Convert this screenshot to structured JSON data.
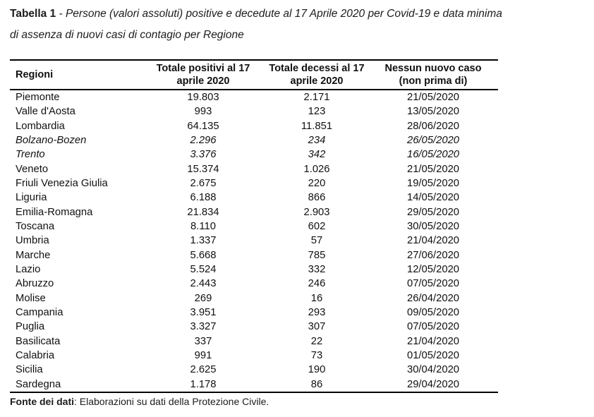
{
  "title": {
    "label": "Tabella 1",
    "text": " - Persone (valori assoluti) positive e decedute al 17 Aprile 2020 per Covid-19 e data minima\ndi assenza di nuovi casi di contagio per Regione"
  },
  "table": {
    "columns": [
      "Regioni",
      "Totale positivi al 17\naprile 2020",
      "Totale decessi al 17\naprile 2020",
      "Nessun nuovo caso\n(non prima di)"
    ],
    "rows": [
      {
        "regione": "Piemonte",
        "positivi": "19.803",
        "decessi": "2.171",
        "nessun_nuovo_caso": "21/05/2020",
        "italic": false
      },
      {
        "regione": "Valle d'Aosta",
        "positivi": "993",
        "decessi": "123",
        "nessun_nuovo_caso": "13/05/2020",
        "italic": false
      },
      {
        "regione": "Lombardia",
        "positivi": "64.135",
        "decessi": "11.851",
        "nessun_nuovo_caso": "28/06/2020",
        "italic": false
      },
      {
        "regione": "Bolzano-Bozen",
        "positivi": "2.296",
        "decessi": "234",
        "nessun_nuovo_caso": "26/05/2020",
        "italic": true
      },
      {
        "regione": "Trento",
        "positivi": "3.376",
        "decessi": "342",
        "nessun_nuovo_caso": "16/05/2020",
        "italic": true
      },
      {
        "regione": "Veneto",
        "positivi": "15.374",
        "decessi": "1.026",
        "nessun_nuovo_caso": "21/05/2020",
        "italic": false
      },
      {
        "regione": "Friuli Venezia Giulia",
        "positivi": "2.675",
        "decessi": "220",
        "nessun_nuovo_caso": "19/05/2020",
        "italic": false
      },
      {
        "regione": "Liguria",
        "positivi": "6.188",
        "decessi": "866",
        "nessun_nuovo_caso": "14/05/2020",
        "italic": false
      },
      {
        "regione": "Emilia-Romagna",
        "positivi": "21.834",
        "decessi": "2.903",
        "nessun_nuovo_caso": "29/05/2020",
        "italic": false
      },
      {
        "regione": "Toscana",
        "positivi": "8.110",
        "decessi": "602",
        "nessun_nuovo_caso": "30/05/2020",
        "italic": false
      },
      {
        "regione": "Umbria",
        "positivi": "1.337",
        "decessi": "57",
        "nessun_nuovo_caso": "21/04/2020",
        "italic": false
      },
      {
        "regione": "Marche",
        "positivi": "5.668",
        "decessi": "785",
        "nessun_nuovo_caso": "27/06/2020",
        "italic": false
      },
      {
        "regione": "Lazio",
        "positivi": "5.524",
        "decessi": "332",
        "nessun_nuovo_caso": "12/05/2020",
        "italic": false
      },
      {
        "regione": "Abruzzo",
        "positivi": "2.443",
        "decessi": "246",
        "nessun_nuovo_caso": "07/05/2020",
        "italic": false
      },
      {
        "regione": "Molise",
        "positivi": "269",
        "decessi": "16",
        "nessun_nuovo_caso": "26/04/2020",
        "italic": false
      },
      {
        "regione": "Campania",
        "positivi": "3.951",
        "decessi": "293",
        "nessun_nuovo_caso": "09/05/2020",
        "italic": false
      },
      {
        "regione": "Puglia",
        "positivi": "3.327",
        "decessi": "307",
        "nessun_nuovo_caso": "07/05/2020",
        "italic": false
      },
      {
        "regione": "Basilicata",
        "positivi": "337",
        "decessi": "22",
        "nessun_nuovo_caso": "21/04/2020",
        "italic": false
      },
      {
        "regione": "Calabria",
        "positivi": "991",
        "decessi": "73",
        "nessun_nuovo_caso": "01/05/2020",
        "italic": false
      },
      {
        "regione": "Sicilia",
        "positivi": "2.625",
        "decessi": "190",
        "nessun_nuovo_caso": "30/04/2020",
        "italic": false
      },
      {
        "regione": "Sardegna",
        "positivi": "1.178",
        "decessi": "86",
        "nessun_nuovo_caso": "29/04/2020",
        "italic": false
      }
    ]
  },
  "footer": {
    "label": "Fonte dei dati",
    "text": ": Elaborazioni su dati della Protezione Civile."
  },
  "colors": {
    "background": "#ffffff",
    "text": "#111111",
    "border": "#000000"
  }
}
